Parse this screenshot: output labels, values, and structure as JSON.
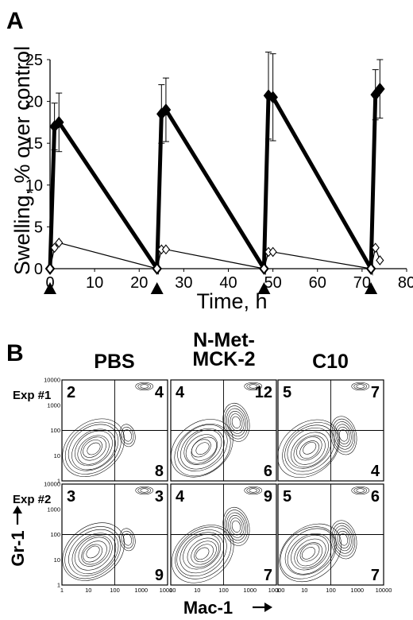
{
  "panel_a": {
    "letter": "A",
    "chart_data": {
      "type": "line",
      "xlabel": "Time, h",
      "ylabel": "Swelling, % over control",
      "xlim": [
        0,
        80
      ],
      "ylim": [
        0,
        25
      ],
      "xticks": [
        "0",
        "10",
        "20",
        "30",
        "40",
        "50",
        "60",
        "70",
        "80"
      ],
      "yticks": [
        "0",
        "5",
        "10",
        "15",
        "20",
        "25"
      ],
      "grid": false,
      "injection_markers_h": [
        0,
        24,
        48,
        72
      ],
      "series": [
        {
          "style": "thick line, filled diamond",
          "x": [
            0,
            1,
            2,
            24,
            25,
            26,
            48,
            49,
            50,
            72,
            73,
            74
          ],
          "y": [
            0,
            17,
            17.5,
            0,
            18.5,
            19,
            0,
            20.7,
            20.5,
            0,
            20.8,
            21.5
          ],
          "err": [
            0,
            2.8,
            3.5,
            0,
            3.5,
            3.8,
            0,
            5.2,
            5.2,
            0,
            3,
            3.5
          ]
        },
        {
          "style": "thin line, open diamond",
          "x": [
            0,
            1,
            2,
            24,
            25,
            26,
            48,
            49,
            50,
            72,
            73,
            74
          ],
          "y": [
            0,
            2.5,
            3.1,
            0,
            2.3,
            2.3,
            0,
            2.0,
            2.0,
            0,
            2.5,
            1.0
          ],
          "err": [
            0,
            0,
            0,
            0,
            0,
            0,
            0,
            0,
            0,
            0,
            0,
            0
          ]
        }
      ]
    }
  },
  "panel_b": {
    "letter": "B",
    "columns": [
      {
        "title": [
          "PBS"
        ]
      },
      {
        "title": [
          "N-Met-",
          "MCK-2"
        ]
      },
      {
        "title": [
          "C10"
        ]
      }
    ],
    "row_labels": [
      "Exp #1",
      "Exp #2"
    ],
    "quadrants": [
      [
        [
          "2",
          "4",
          "8"
        ],
        [
          "4",
          "12",
          "6"
        ],
        [
          "5",
          "7",
          "4"
        ]
      ],
      [
        [
          "3",
          "3",
          "9"
        ],
        [
          "4",
          "9",
          "7"
        ],
        [
          "5",
          "6",
          "7"
        ]
      ]
    ],
    "ticks": [
      "1",
      "10",
      "100",
      "1000",
      "10000"
    ],
    "xlabel": "Mac-1",
    "ylabel": "Gr-1"
  }
}
